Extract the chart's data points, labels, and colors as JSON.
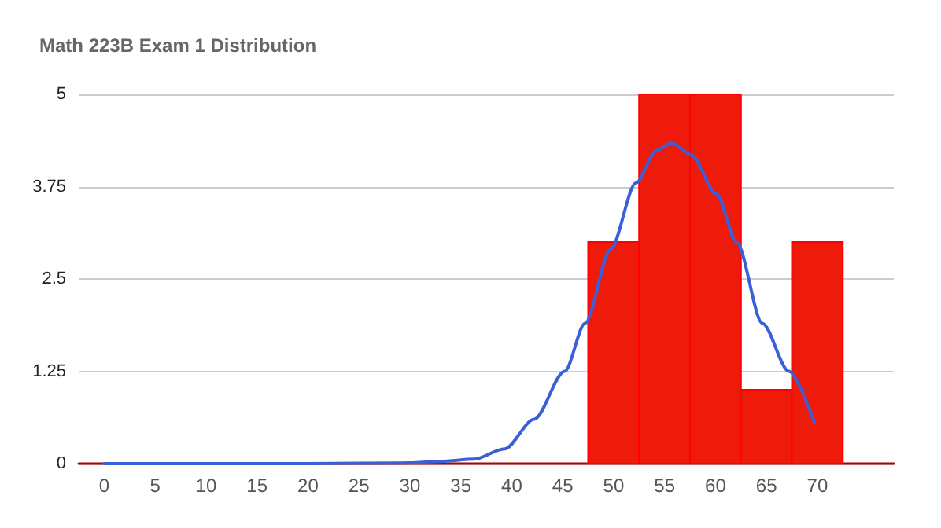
{
  "chart_data": {
    "type": "histogram",
    "title": "Math 223B Exam 1 Distribution",
    "bins": [
      47.5,
      52.5,
      57.5,
      62.5,
      67.5,
      72.5
    ],
    "values": [
      3,
      5,
      5,
      1,
      3
    ],
    "color": "#ee1a0a",
    "series": [
      {
        "type": "line",
        "color": "#3b5fd9",
        "x": [
          0,
          10,
          20,
          30,
          33,
          36.3,
          39.3,
          42.2,
          45.2,
          47.2,
          49.7,
          52.2,
          54.2,
          55.7,
          57.6,
          60.1,
          62.1,
          64.6,
          67.2,
          69.7
        ],
        "values": [
          0,
          0,
          0,
          0.01,
          0.03,
          0.06,
          0.2,
          0.6,
          1.25,
          1.9,
          2.9,
          3.8,
          4.24,
          4.34,
          4.18,
          3.65,
          2.99,
          1.9,
          1.25,
          0.56
        ]
      }
    ],
    "xlim": [
      -2.5,
      77.5
    ],
    "xticks": [
      0,
      5,
      10,
      15,
      20,
      25,
      30,
      35,
      40,
      45,
      50,
      55,
      60,
      65,
      70
    ],
    "ylim": [
      0,
      5
    ],
    "yticks": [
      0,
      1.25,
      2.5,
      3.75,
      5
    ],
    "grid": "y",
    "marker": "none"
  }
}
